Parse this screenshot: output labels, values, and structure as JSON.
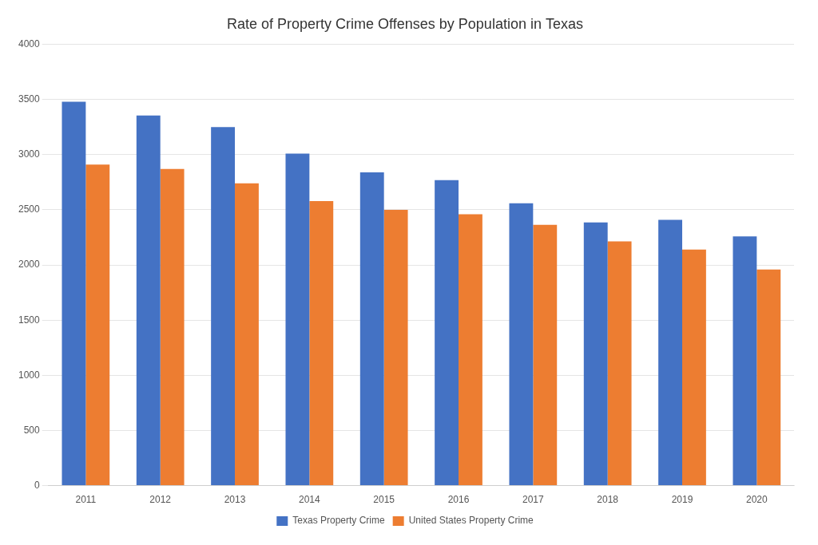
{
  "chart_data": {
    "type": "bar",
    "title": "Rate of Property Crime Offenses by Population in Texas",
    "categories": [
      "2011",
      "2012",
      "2013",
      "2014",
      "2015",
      "2016",
      "2017",
      "2018",
      "2019",
      "2020"
    ],
    "series": [
      {
        "name": "Texas Property Crime",
        "color": "#4472C4",
        "values": [
          3480,
          3355,
          3250,
          3010,
          2840,
          2770,
          2560,
          2385,
          2410,
          2260
        ]
      },
      {
        "name": "United States Property Crime",
        "color": "#ED7D31",
        "values": [
          2910,
          2870,
          2740,
          2580,
          2500,
          2460,
          2365,
          2215,
          2140,
          1960
        ]
      }
    ],
    "ylim": [
      0,
      4000
    ],
    "yticks": [
      0,
      500,
      1000,
      1500,
      2000,
      2500,
      3000,
      3500,
      4000
    ],
    "grid": true,
    "legend": "bottom"
  }
}
